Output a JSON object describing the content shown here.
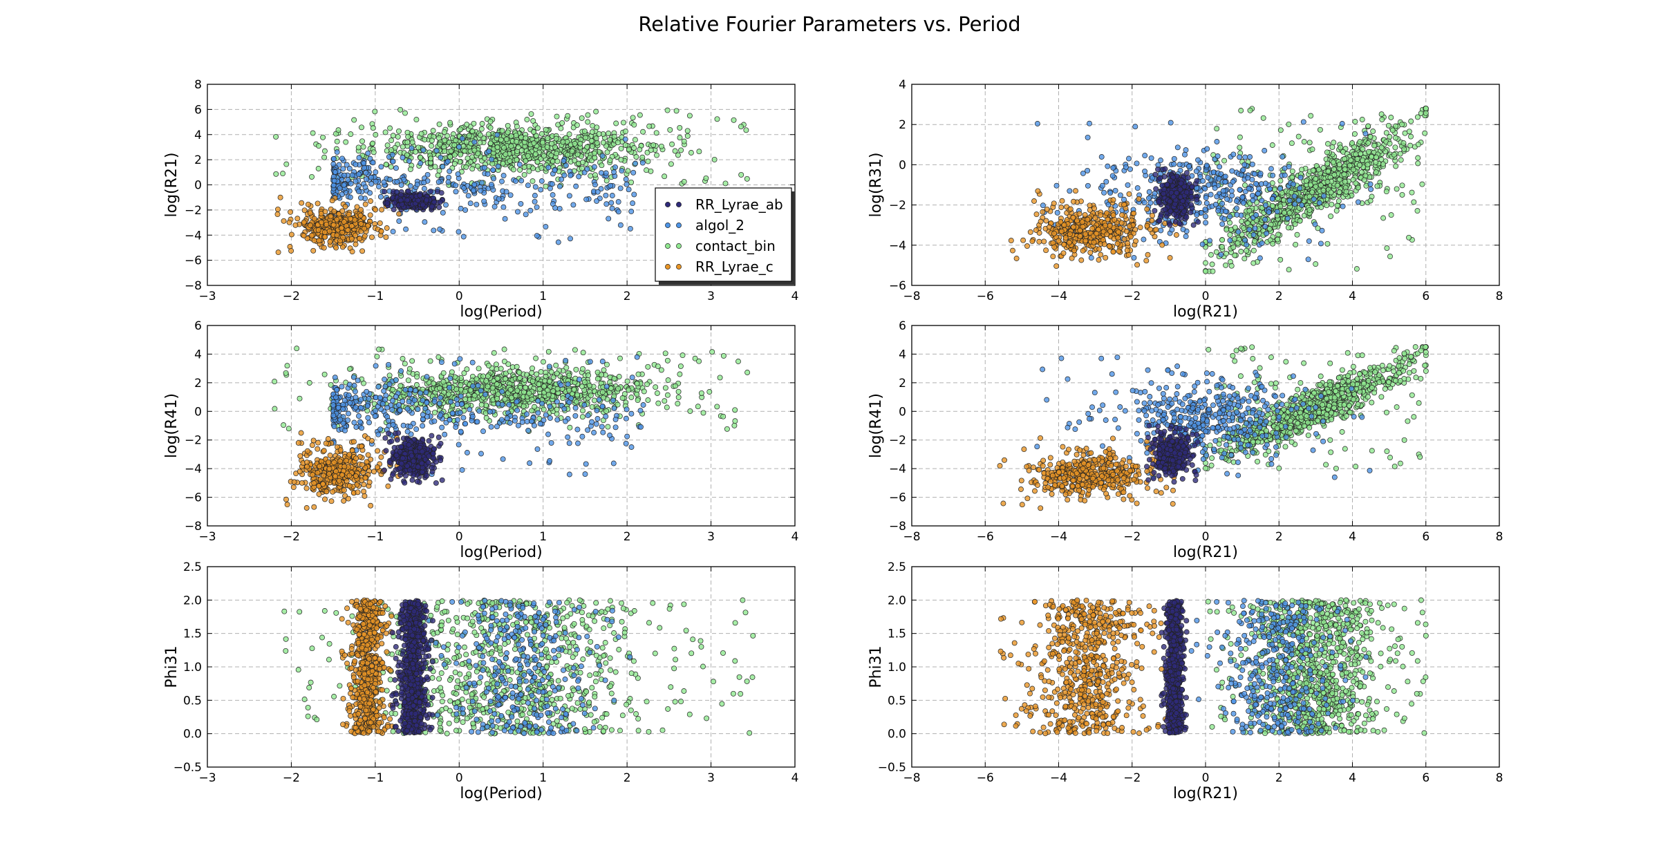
{
  "figure": {
    "title": "Relative Fourier Parameters vs. Period"
  },
  "legend": {
    "placement": "lower-right",
    "entries": [
      {
        "name": "RR_Lyrae_ab",
        "color": "#2e2a7a"
      },
      {
        "name": "algol_2",
        "color": "#4d94e6"
      },
      {
        "name": "contact_bin",
        "color": "#90e890"
      },
      {
        "name": "RR_Lyrae_c",
        "color": "#e89526"
      }
    ]
  },
  "chart_data": [
    {
      "type": "scatter",
      "panel": "left-1",
      "xlabel": "log(Period)",
      "ylabel": "log(R21)",
      "xlim": [
        -3,
        4
      ],
      "ylim": [
        -8,
        8
      ],
      "xticks": [
        "−3",
        "−2",
        "−1",
        "0",
        "1",
        "2",
        "3",
        "4"
      ],
      "yticks": [
        "−8",
        "−6",
        "−4",
        "−2",
        "0",
        "2",
        "4",
        "6",
        "8"
      ],
      "grid": true,
      "legend": true,
      "series": [
        {
          "name": "RR_Lyrae_ab",
          "x_range": [
            -0.9,
            -0.2
          ],
          "y_range": [
            -2.0,
            -0.5
          ],
          "count": 520
        },
        {
          "name": "algol_2",
          "x_range": [
            -1.5,
            2.2
          ],
          "y_range": [
            -4.6,
            4.0
          ],
          "count": 380
        },
        {
          "name": "contact_bin",
          "x_range": [
            -2.2,
            3.5
          ],
          "y_range": [
            -0.2,
            6.0
          ],
          "count": 900
        },
        {
          "name": "RR_Lyrae_c",
          "x_range": [
            -2.2,
            -0.7
          ],
          "y_range": [
            -5.6,
            -1.0
          ],
          "count": 400
        }
      ]
    },
    {
      "type": "scatter",
      "panel": "right-1",
      "xlabel": "log(R21)",
      "ylabel": "log(R31)",
      "xlim": [
        -8,
        8
      ],
      "ylim": [
        -6,
        4
      ],
      "xticks": [
        "−8",
        "−6",
        "−4",
        "−2",
        "0",
        "2",
        "4",
        "6",
        "8"
      ],
      "yticks": [
        "−6",
        "−4",
        "−2",
        "0",
        "2",
        "4"
      ],
      "grid": true,
      "legend": false,
      "series": [
        {
          "name": "RR_Lyrae_ab",
          "x_range": [
            -1.4,
            -0.2
          ],
          "y_range": [
            -3.0,
            -0.2
          ],
          "count": 480
        },
        {
          "name": "algol_2",
          "x_range": [
            -4.7,
            4.5
          ],
          "y_range": [
            -4.8,
            2.2
          ],
          "count": 400
        },
        {
          "name": "contact_bin",
          "x_range": [
            0.0,
            6.0
          ],
          "y_range": [
            -5.3,
            2.8
          ],
          "count": 950
        },
        {
          "name": "RR_Lyrae_c",
          "x_range": [
            -5.6,
            -0.7
          ],
          "y_range": [
            -5.2,
            -1.3
          ],
          "count": 420
        }
      ]
    },
    {
      "type": "scatter",
      "panel": "left-2",
      "xlabel": "log(Period)",
      "ylabel": "log(R41)",
      "xlim": [
        -3,
        4
      ],
      "ylim": [
        -8,
        6
      ],
      "xticks": [
        "−3",
        "−2",
        "−1",
        "0",
        "1",
        "2",
        "3",
        "4"
      ],
      "yticks": [
        "−8",
        "−6",
        "−4",
        "−2",
        "0",
        "2",
        "4",
        "6"
      ],
      "grid": true,
      "legend": false,
      "series": [
        {
          "name": "RR_Lyrae_ab",
          "x_range": [
            -0.9,
            -0.2
          ],
          "y_range": [
            -5.0,
            -1.5
          ],
          "count": 520
        },
        {
          "name": "algol_2",
          "x_range": [
            -1.5,
            2.2
          ],
          "y_range": [
            -4.6,
            3.8
          ],
          "count": 380
        },
        {
          "name": "contact_bin",
          "x_range": [
            -2.2,
            3.5
          ],
          "y_range": [
            -1.5,
            4.4
          ],
          "count": 900
        },
        {
          "name": "RR_Lyrae_c",
          "x_range": [
            -2.2,
            -0.7
          ],
          "y_range": [
            -6.9,
            -1.5
          ],
          "count": 400
        }
      ]
    },
    {
      "type": "scatter",
      "panel": "right-2",
      "xlabel": "log(R21)",
      "ylabel": "log(R41)",
      "xlim": [
        -8,
        8
      ],
      "ylim": [
        -8,
        6
      ],
      "xticks": [
        "−8",
        "−6",
        "−4",
        "−2",
        "0",
        "2",
        "4",
        "6",
        "8"
      ],
      "yticks": [
        "−8",
        "−6",
        "−4",
        "−2",
        "0",
        "2",
        "4",
        "6"
      ],
      "grid": true,
      "legend": false,
      "series": [
        {
          "name": "RR_Lyrae_ab",
          "x_range": [
            -1.6,
            -0.2
          ],
          "y_range": [
            -5.0,
            -1.0
          ],
          "count": 480
        },
        {
          "name": "algol_2",
          "x_range": [
            -4.7,
            4.5
          ],
          "y_range": [
            -4.6,
            3.8
          ],
          "count": 400
        },
        {
          "name": "contact_bin",
          "x_range": [
            0.0,
            6.0
          ],
          "y_range": [
            -4.0,
            4.5
          ],
          "count": 950
        },
        {
          "name": "RR_Lyrae_c",
          "x_range": [
            -5.6,
            -0.7
          ],
          "y_range": [
            -6.9,
            -1.8
          ],
          "count": 420
        }
      ]
    },
    {
      "type": "scatter",
      "panel": "left-3",
      "xlabel": "log(Period)",
      "ylabel": "Phi31",
      "xlim": [
        -3,
        4
      ],
      "ylim": [
        -0.5,
        2.5
      ],
      "xticks": [
        "−3",
        "−2",
        "−1",
        "0",
        "1",
        "2",
        "3",
        "4"
      ],
      "yticks": [
        "−0.5",
        "0.0",
        "0.5",
        "1.0",
        "1.5",
        "2.0",
        "2.5"
      ],
      "grid": true,
      "legend": false,
      "series": [
        {
          "name": "RR_Lyrae_ab",
          "x_range": [
            -0.8,
            -0.3
          ],
          "y_range": [
            0.0,
            2.0
          ],
          "count": 700
        },
        {
          "name": "algol_2",
          "x_range": [
            -0.5,
            2.1
          ],
          "y_range": [
            0.0,
            2.0
          ],
          "count": 300
        },
        {
          "name": "contact_bin",
          "x_range": [
            -2.2,
            3.5
          ],
          "y_range": [
            0.0,
            2.0
          ],
          "count": 800
        },
        {
          "name": "RR_Lyrae_c",
          "x_range": [
            -1.4,
            -0.8
          ],
          "y_range": [
            0.0,
            2.0
          ],
          "count": 650
        }
      ]
    },
    {
      "type": "scatter",
      "panel": "right-3",
      "xlabel": "log(R21)",
      "ylabel": "Phi31",
      "xlim": [
        -8,
        8
      ],
      "ylim": [
        -0.5,
        2.5
      ],
      "xticks": [
        "−8",
        "−6",
        "−4",
        "−2",
        "0",
        "2",
        "4",
        "6",
        "8"
      ],
      "yticks": [
        "−0.5",
        "0.0",
        "0.5",
        "1.0",
        "1.5",
        "2.0",
        "2.5"
      ],
      "grid": true,
      "legend": false,
      "series": [
        {
          "name": "RR_Lyrae_ab",
          "x_range": [
            -1.2,
            -0.5
          ],
          "y_range": [
            0.0,
            2.0
          ],
          "count": 700
        },
        {
          "name": "algol_2",
          "x_range": [
            -0.5,
            4.5
          ],
          "y_range": [
            0.0,
            2.0
          ],
          "count": 350
        },
        {
          "name": "contact_bin",
          "x_range": [
            0.0,
            6.0
          ],
          "y_range": [
            0.0,
            2.0
          ],
          "count": 900
        },
        {
          "name": "RR_Lyrae_c",
          "x_range": [
            -5.6,
            -0.9
          ],
          "y_range": [
            0.0,
            2.0
          ],
          "count": 600
        }
      ]
    }
  ]
}
